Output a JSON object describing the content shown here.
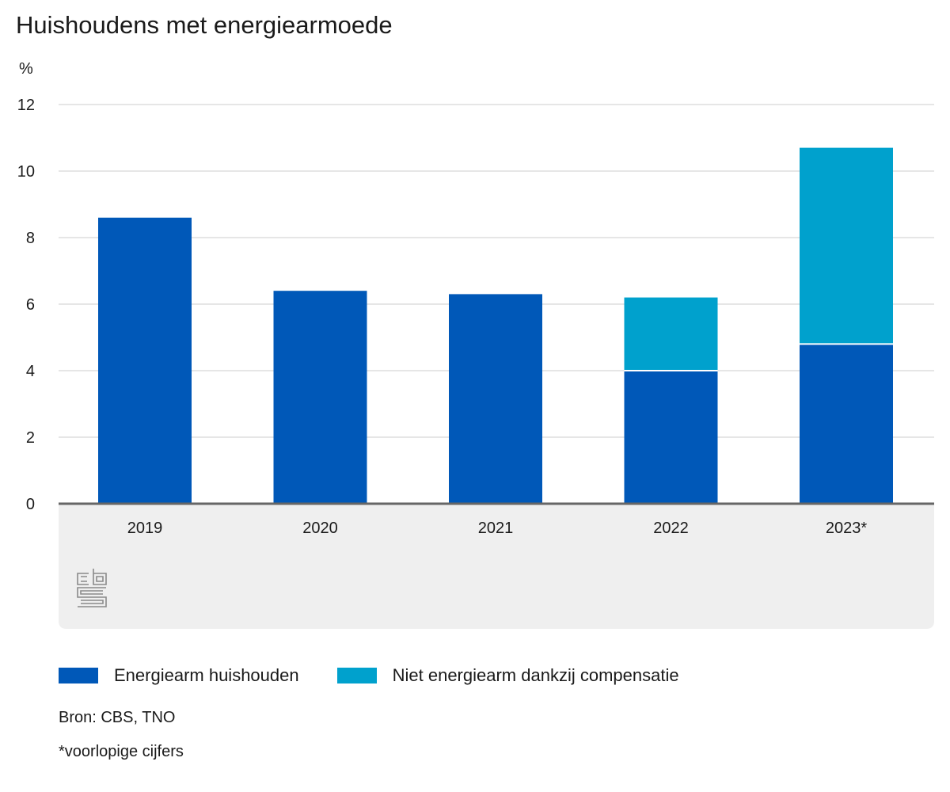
{
  "title": "Huishoudens met energiearmoede",
  "unit_label": "%",
  "colors": {
    "series_1": "#0058b8",
    "series_2": "#00a1cd",
    "grid": "#cccccc",
    "axis": "#666666",
    "panel": "#efefef",
    "logo": "#8a8a8a"
  },
  "legend": [
    {
      "label": "Energiearm huishouden",
      "color": "#0058b8"
    },
    {
      "label": "Niet energiearm dankzij compensatie",
      "color": "#00a1cd"
    }
  ],
  "source": "Bron: CBS, TNO",
  "footnote": "*voorlopige cijfers",
  "logo_icon": "cbs-logo-icon",
  "chart_data": {
    "type": "bar",
    "stacked": true,
    "categories": [
      "2019",
      "2020",
      "2021",
      "2022",
      "2023*"
    ],
    "series": [
      {
        "name": "Energiearm huishouden",
        "values": [
          8.6,
          6.4,
          6.3,
          4.0,
          4.8
        ]
      },
      {
        "name": "Niet energiearm dankzij compensatie",
        "values": [
          0,
          0,
          0,
          2.2,
          5.9
        ]
      }
    ],
    "ylabel": "%",
    "ylim": [
      0,
      12
    ],
    "yticks": [
      0,
      2,
      4,
      6,
      8,
      10,
      12
    ],
    "grid": true,
    "legend_position": "bottom-left"
  }
}
